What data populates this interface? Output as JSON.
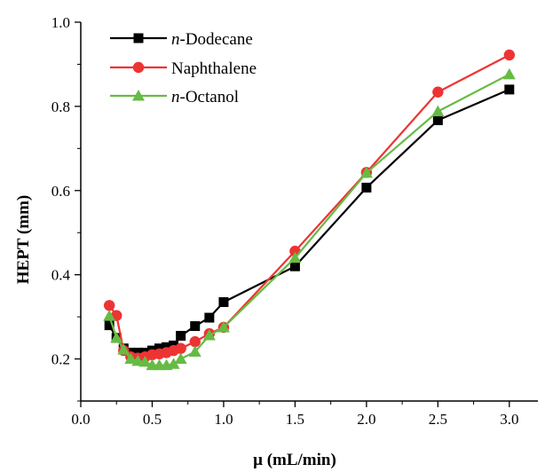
{
  "chart_data": {
    "type": "line",
    "xlabel": "μ (mL/min)",
    "ylabel": "HEPT (mm)",
    "xlim": [
      0.0,
      3.2
    ],
    "ylim": [
      0.1,
      1.0
    ],
    "xticks": [
      "0.0",
      "0.5",
      "1.0",
      "1.5",
      "2.0",
      "2.5",
      "3.0"
    ],
    "yticks": [
      "0.2",
      "0.4",
      "0.6",
      "0.8",
      "1.0"
    ],
    "grid": false,
    "legend_position": "top-left",
    "series": [
      {
        "name": "Dodecane",
        "prefix": "n",
        "color": "#000000",
        "marker": "square",
        "x": [
          0.2,
          0.25,
          0.3,
          0.35,
          0.4,
          0.45,
          0.5,
          0.55,
          0.6,
          0.65,
          0.7,
          0.8,
          0.9,
          1.0,
          1.5,
          2.0,
          2.5,
          3.0
        ],
        "y": [
          0.28,
          0.25,
          0.225,
          0.215,
          0.215,
          0.215,
          0.22,
          0.225,
          0.228,
          0.232,
          0.255,
          0.278,
          0.298,
          0.335,
          0.42,
          0.607,
          0.767,
          0.84
        ]
      },
      {
        "name": "Naphthalene",
        "prefix": "",
        "color": "#ee3333",
        "marker": "circle",
        "x": [
          0.2,
          0.25,
          0.3,
          0.35,
          0.4,
          0.45,
          0.5,
          0.55,
          0.6,
          0.65,
          0.7,
          0.8,
          0.9,
          1.0,
          1.5,
          2.0,
          2.5,
          3.0
        ],
        "y": [
          0.327,
          0.303,
          0.22,
          0.205,
          0.202,
          0.205,
          0.21,
          0.212,
          0.215,
          0.22,
          0.225,
          0.241,
          0.26,
          0.275,
          0.456,
          0.643,
          0.834,
          0.922
        ]
      },
      {
        "name": "Octanol",
        "prefix": "n",
        "color": "#66bb44",
        "marker": "triangle",
        "x": [
          0.2,
          0.25,
          0.3,
          0.35,
          0.4,
          0.45,
          0.5,
          0.55,
          0.6,
          0.65,
          0.7,
          0.8,
          0.9,
          1.0,
          1.5,
          2.0,
          2.5,
          3.0
        ],
        "y": [
          0.302,
          0.25,
          0.222,
          0.2,
          0.195,
          0.193,
          0.185,
          0.185,
          0.185,
          0.188,
          0.2,
          0.217,
          0.256,
          0.275,
          0.44,
          0.642,
          0.788,
          0.876
        ]
      }
    ]
  }
}
